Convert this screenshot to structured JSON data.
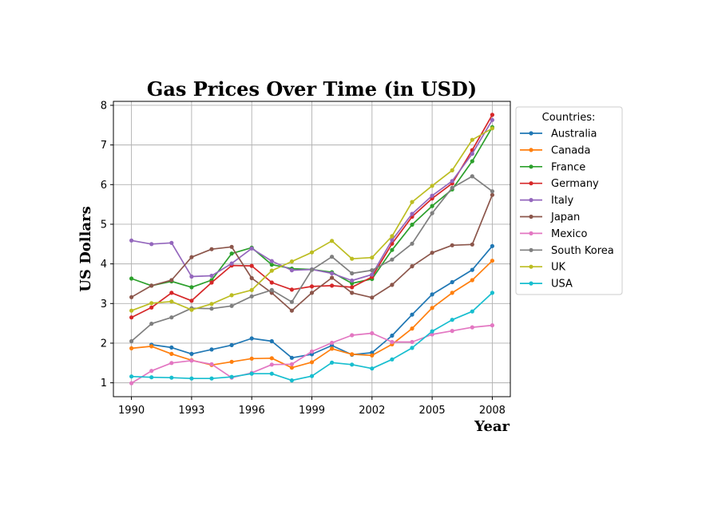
{
  "chart_data": {
    "type": "line",
    "title": "Gas Prices Over Time (in USD)",
    "xlabel": "Year",
    "ylabel": "US Dollars",
    "xlim": [
      1989.1,
      2008.9
    ],
    "ylim": [
      0.65,
      8.1
    ],
    "xticks": [
      1990,
      1993,
      1996,
      1999,
      2002,
      2005,
      2008
    ],
    "yticks": [
      1,
      2,
      3,
      4,
      5,
      6,
      7,
      8
    ],
    "grid": true,
    "legend": {
      "title": "Countries:",
      "placement": "outside-right"
    },
    "x": [
      1990,
      1991,
      1992,
      1993,
      1994,
      1995,
      1996,
      1997,
      1998,
      1999,
      2000,
      2001,
      2002,
      2003,
      2004,
      2005,
      2006,
      2007,
      2008
    ],
    "series": [
      {
        "name": "Australia",
        "color": "#1f77b4",
        "values": [
          null,
          1.96,
          1.89,
          1.73,
          1.84,
          1.95,
          2.12,
          2.05,
          1.63,
          1.72,
          1.94,
          1.71,
          1.76,
          2.19,
          2.72,
          3.23,
          3.54,
          3.85,
          4.45
        ]
      },
      {
        "name": "Canada",
        "color": "#ff7f0e",
        "values": [
          1.87,
          1.92,
          1.73,
          1.57,
          1.45,
          1.53,
          1.61,
          1.62,
          1.38,
          1.52,
          1.86,
          1.72,
          1.69,
          1.97,
          2.37,
          2.89,
          3.27,
          3.59,
          4.08
        ]
      },
      {
        "name": "France",
        "color": "#2ca02c",
        "values": [
          3.63,
          3.45,
          3.56,
          3.41,
          3.59,
          4.26,
          4.41,
          3.98,
          3.88,
          3.86,
          3.79,
          3.51,
          3.62,
          4.35,
          4.99,
          5.46,
          5.88,
          6.59,
          7.45
        ]
      },
      {
        "name": "Germany",
        "color": "#d62728",
        "values": [
          2.65,
          2.9,
          3.27,
          3.07,
          3.53,
          3.96,
          3.95,
          3.53,
          3.35,
          3.43,
          3.45,
          3.41,
          3.67,
          4.51,
          5.19,
          5.65,
          6.03,
          6.87,
          7.76
        ]
      },
      {
        "name": "Italy",
        "color": "#9467bd",
        "values": [
          4.59,
          4.5,
          4.53,
          3.68,
          3.7,
          4.01,
          4.39,
          4.07,
          3.84,
          3.86,
          3.76,
          3.58,
          3.73,
          4.6,
          5.26,
          5.72,
          6.09,
          6.78,
          7.63
        ]
      },
      {
        "name": "Japan",
        "color": "#8c564b",
        "values": [
          3.16,
          3.45,
          3.59,
          4.17,
          4.37,
          4.43,
          3.64,
          3.27,
          2.82,
          3.27,
          3.65,
          3.27,
          3.15,
          3.47,
          3.94,
          4.28,
          4.47,
          4.49,
          5.74
        ]
      },
      {
        "name": "Mexico",
        "color": "#e377c2",
        "values": [
          0.99,
          1.3,
          1.5,
          1.56,
          1.47,
          1.13,
          1.25,
          1.46,
          1.47,
          1.79,
          2.01,
          2.2,
          2.25,
          2.03,
          2.03,
          2.22,
          2.31,
          2.4,
          2.45
        ]
      },
      {
        "name": "South Korea",
        "color": "#7f7f7f",
        "values": [
          2.05,
          2.49,
          2.65,
          2.88,
          2.87,
          2.94,
          3.18,
          3.34,
          3.04,
          3.85,
          4.18,
          3.76,
          3.84,
          4.11,
          4.51,
          5.28,
          5.92,
          6.21,
          5.83
        ]
      },
      {
        "name": "UK",
        "color": "#bcbd22",
        "values": [
          2.82,
          3.01,
          3.05,
          2.84,
          2.99,
          3.21,
          3.34,
          3.83,
          4.06,
          4.29,
          4.58,
          4.13,
          4.16,
          4.7,
          5.56,
          5.97,
          6.36,
          7.13,
          7.42
        ]
      },
      {
        "name": "USA",
        "color": "#17becf",
        "values": [
          1.16,
          1.14,
          1.13,
          1.11,
          1.11,
          1.15,
          1.23,
          1.23,
          1.06,
          1.17,
          1.51,
          1.46,
          1.36,
          1.59,
          1.88,
          2.3,
          2.59,
          2.8,
          3.27
        ]
      }
    ]
  }
}
